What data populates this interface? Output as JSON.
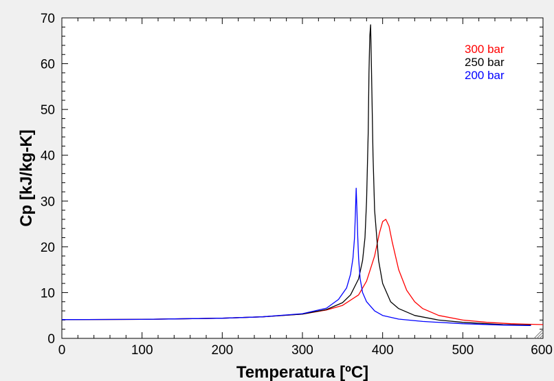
{
  "chart_data": {
    "type": "line",
    "xlabel": "Temperatura [ºC]",
    "ylabel": "Cp [kJ/kg-K]",
    "xlim": [
      0,
      600
    ],
    "ylim": [
      0,
      70
    ],
    "xticks": [
      "0",
      "100",
      "200",
      "300",
      "400",
      "500",
      "600"
    ],
    "yticks": [
      "0",
      "10",
      "20",
      "30",
      "40",
      "50",
      "60",
      "70"
    ],
    "grid": false,
    "legend_position": "top-right",
    "series": [
      {
        "name": "300 bar",
        "color": "#ff0000",
        "x": [
          0,
          100,
          200,
          250,
          300,
          330,
          350,
          370,
          380,
          390,
          396,
          400,
          404,
          408,
          412,
          420,
          430,
          440,
          450,
          470,
          500,
          530,
          560,
          600
        ],
        "y": [
          4.1,
          4.15,
          4.4,
          4.7,
          5.3,
          6.2,
          7.2,
          9.5,
          12.5,
          18.0,
          23.0,
          25.5,
          26.0,
          24.5,
          21.0,
          15.0,
          10.5,
          8.0,
          6.5,
          5.0,
          4.0,
          3.5,
          3.2,
          3.0
        ]
      },
      {
        "name": "250 bar",
        "color": "#000000",
        "x": [
          0,
          100,
          200,
          250,
          300,
          330,
          350,
          360,
          370,
          375,
          378,
          380,
          382,
          383,
          384,
          385,
          386,
          388,
          390,
          395,
          400,
          410,
          420,
          440,
          470,
          500,
          550,
          585
        ],
        "y": [
          4.1,
          4.15,
          4.4,
          4.7,
          5.3,
          6.3,
          7.8,
          9.5,
          13.0,
          17.0,
          22.0,
          30.0,
          45.0,
          58.0,
          66.0,
          68.5,
          60.0,
          40.0,
          28.0,
          17.0,
          12.0,
          8.0,
          6.5,
          5.0,
          4.0,
          3.5,
          3.0,
          2.9
        ]
      },
      {
        "name": "200 bar",
        "color": "#0000ff",
        "x": [
          0,
          100,
          200,
          250,
          300,
          330,
          345,
          355,
          360,
          363,
          365,
          366,
          367,
          368,
          369,
          370,
          372,
          375,
          380,
          390,
          400,
          420,
          450,
          500,
          550,
          585
        ],
        "y": [
          4.1,
          4.15,
          4.4,
          4.7,
          5.4,
          6.6,
          8.5,
          11.0,
          14.0,
          17.5,
          22.0,
          27.0,
          32.8,
          28.0,
          22.0,
          17.5,
          13.0,
          10.0,
          8.0,
          6.0,
          5.0,
          4.2,
          3.7,
          3.2,
          2.9,
          2.8
        ]
      }
    ]
  }
}
